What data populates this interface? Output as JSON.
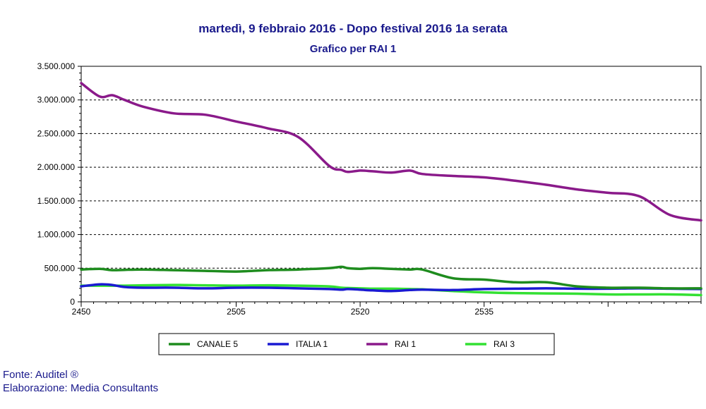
{
  "title": "martedì, 9 febbraio 2016 - Dopo festival 2016 1a serata",
  "subtitle": "Grafico per RAI 1",
  "footer": {
    "source": "Fonte: Auditel ®",
    "elaboration": "Elaborazione: Media Consultants"
  },
  "chart_data": {
    "type": "line",
    "title": "martedì, 9 febbraio 2016 - Dopo festival 2016 1a serata",
    "subtitle": "Grafico per RAI 1",
    "xlabel": "",
    "ylabel": "",
    "xlim": [
      0,
      100
    ],
    "ylim": [
      0,
      3500000
    ],
    "y_ticks": [
      0,
      500000,
      1000000,
      1500000,
      2000000,
      2500000,
      3000000,
      3500000
    ],
    "y_tick_labels": [
      "0",
      "500.000",
      "1.000.000",
      "1.500.000",
      "2.000.000",
      "2.500.000",
      "3.000.000",
      "3.500.000"
    ],
    "x_ticks": [
      0,
      25,
      45,
      65,
      85
    ],
    "x_tick_labels": [
      "2450",
      "2505",
      "2520",
      "2535",
      ""
    ],
    "grid": "horizontal dashed",
    "legend_position": "bottom",
    "x": [
      0,
      3,
      5,
      7,
      10,
      15,
      20,
      25,
      30,
      35,
      40,
      42,
      43,
      45,
      47,
      50,
      53,
      55,
      60,
      65,
      70,
      75,
      80,
      85,
      90,
      95,
      100
    ],
    "series": [
      {
        "name": "CANALE 5",
        "color": "#1e8c1e",
        "values": [
          480000,
          490000,
          470000,
          475000,
          480000,
          470000,
          460000,
          450000,
          470000,
          480000,
          500000,
          520000,
          500000,
          490000,
          500000,
          490000,
          480000,
          480000,
          350000,
          330000,
          290000,
          290000,
          230000,
          210000,
          210000,
          200000,
          200000
        ]
      },
      {
        "name": "ITALIA 1",
        "color": "#1a1ad2",
        "values": [
          230000,
          260000,
          250000,
          220000,
          210000,
          210000,
          200000,
          210000,
          210000,
          200000,
          190000,
          180000,
          190000,
          180000,
          170000,
          160000,
          175000,
          180000,
          175000,
          190000,
          195000,
          200000,
          195000,
          195000,
          200000,
          195000,
          190000
        ]
      },
      {
        "name": "RAI 1",
        "color": "#8a1a8a",
        "values": [
          3250000,
          3050000,
          3070000,
          3000000,
          2900000,
          2800000,
          2780000,
          2680000,
          2580000,
          2450000,
          2020000,
          1960000,
          1930000,
          1950000,
          1940000,
          1920000,
          1950000,
          1900000,
          1870000,
          1850000,
          1800000,
          1740000,
          1670000,
          1620000,
          1570000,
          1290000,
          1210000
        ]
      },
      {
        "name": "RAI 3",
        "color": "#33e033",
        "values": [
          240000,
          240000,
          240000,
          240000,
          245000,
          250000,
          245000,
          240000,
          245000,
          240000,
          230000,
          210000,
          205000,
          200000,
          195000,
          195000,
          190000,
          185000,
          160000,
          140000,
          130000,
          125000,
          120000,
          110000,
          110000,
          110000,
          100000
        ]
      }
    ]
  }
}
